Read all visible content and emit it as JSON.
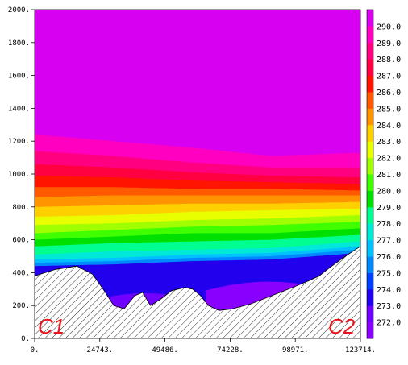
{
  "chart_data": {
    "type": "heatmap",
    "subtype": "filled-contour cross-section with terrain",
    "title": "",
    "xlabel": "",
    "ylabel": "",
    "xlim": [
      0,
      123714
    ],
    "ylim": [
      0,
      2000
    ],
    "x_ticks": [
      "0.",
      "24743.",
      "49486.",
      "74228.",
      "98971.",
      "123714."
    ],
    "y_ticks": [
      "0.",
      "200.",
      "400.",
      "600.",
      "800.",
      "1000.",
      "1200.",
      "1400.",
      "1600.",
      "1800.",
      "2000."
    ],
    "colorbar": {
      "placement": "right",
      "labels": [
        "272.0",
        "273.0",
        "274.0",
        "275.0",
        "276.0",
        "277.0",
        "278.0",
        "279.0",
        "280.0",
        "281.0",
        "282.0",
        "283.0",
        "284.0",
        "285.0",
        "286.0",
        "287.0",
        "288.0",
        "289.0",
        "290.0"
      ],
      "levels": [
        272,
        273,
        274,
        275,
        276,
        277,
        278,
        279,
        280,
        281,
        282,
        283,
        284,
        285,
        286,
        287,
        288,
        289,
        290
      ],
      "colors": [
        "#8a00ff",
        "#7000ff",
        "#2200ee",
        "#0040ff",
        "#0088ff",
        "#00c0ff",
        "#00e8d8",
        "#00ff90",
        "#00e000",
        "#40ff00",
        "#a0ff00",
        "#e8ff00",
        "#ffd000",
        "#ff9400",
        "#ff5a00",
        "#ff1400",
        "#ff0040",
        "#ff0080",
        "#ff00c0",
        "#d800f0"
      ]
    },
    "annotations": [
      "C1",
      "C2"
    ],
    "terrain": {
      "x": [
        0,
        8000,
        16000,
        22000,
        26000,
        30000,
        34000,
        38000,
        41000,
        44000,
        48000,
        52000,
        57000,
        60000,
        63000,
        66000,
        70000,
        75000,
        82000,
        90000,
        98000,
        104000,
        108000,
        112000,
        118000,
        123714
      ],
      "y": [
        380,
        420,
        440,
        390,
        300,
        200,
        180,
        260,
        280,
        200,
        240,
        290,
        310,
        300,
        260,
        200,
        170,
        180,
        210,
        260,
        310,
        350,
        380,
        430,
        500,
        560
      ]
    },
    "isotherm_heights": {
      "x": [
        0,
        30000,
        60000,
        90000,
        123714
      ],
      "levels": [
        {
          "value": 276,
          "y": [
            440,
            450,
            470,
            480,
            520
          ]
        },
        {
          "value": 277,
          "y": [
            460,
            470,
            490,
            500,
            540
          ]
        },
        {
          "value": 278,
          "y": [
            480,
            490,
            510,
            520,
            560
          ]
        },
        {
          "value": 279,
          "y": [
            510,
            530,
            540,
            550,
            590
          ]
        },
        {
          "value": 280,
          "y": [
            560,
            580,
            590,
            600,
            630
          ]
        },
        {
          "value": 281,
          "y": [
            600,
            620,
            640,
            640,
            670
          ]
        },
        {
          "value": 282,
          "y": [
            640,
            660,
            680,
            690,
            710
          ]
        },
        {
          "value": 283,
          "y": [
            690,
            700,
            720,
            730,
            750
          ]
        },
        {
          "value": 284,
          "y": [
            740,
            750,
            770,
            780,
            790
          ]
        },
        {
          "value": 285,
          "y": [
            800,
            810,
            820,
            820,
            830
          ]
        },
        {
          "value": 286,
          "y": [
            860,
            870,
            870,
            870,
            870
          ]
        },
        {
          "value": 287,
          "y": [
            920,
            920,
            910,
            910,
            900
          ]
        },
        {
          "value": 288,
          "y": [
            990,
            980,
            960,
            950,
            940
          ]
        },
        {
          "value": 289,
          "y": [
            1060,
            1040,
            1010,
            990,
            980
          ]
        },
        {
          "value": 290,
          "y": [
            1140,
            1110,
            1070,
            1040,
            1040
          ]
        },
        {
          "value": 291,
          "y": [
            1240,
            1200,
            1160,
            1110,
            1130
          ]
        }
      ]
    },
    "cold_pools": [
      {
        "value": 274,
        "x": [
          2000,
          122000
        ],
        "y_floor": 420
      },
      {
        "value": 273,
        "x": [
          20000,
          60000
        ],
        "y_floor": 260
      },
      {
        "value": 272,
        "x": [
          65000,
          108000
        ],
        "y_floor": 330
      }
    ]
  }
}
